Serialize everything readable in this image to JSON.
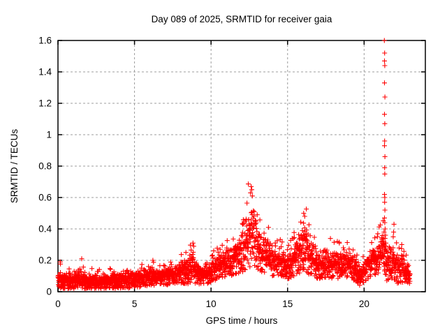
{
  "chart_data": {
    "type": "scatter",
    "title": "Day 089 of 2025, SRMTID for receiver gaia",
    "xlabel": "GPS time / hours",
    "ylabel": "SRMTID / TECUs",
    "xlim": [
      0,
      24
    ],
    "ylim": [
      0,
      1.6
    ],
    "xticks": [
      0,
      5,
      10,
      15,
      20
    ],
    "xtick_labels": [
      "0",
      "5",
      "10",
      "15",
      "20"
    ],
    "yticks": [
      0,
      0.2,
      0.4,
      0.6,
      0.8,
      1.0,
      1.2,
      1.4,
      1.6
    ],
    "ytick_labels": [
      "0",
      "0.2",
      "0.4",
      "0.6",
      "0.8",
      "1",
      "1.2",
      "1.4",
      "1.6"
    ],
    "grid": true,
    "grid_style": "dashed",
    "legend": null,
    "marker": {
      "shape": "plus",
      "color": "#ff0000",
      "size": 7
    },
    "colors": {
      "axis": "#000000",
      "grid": "#9c9c9c",
      "background": "#ffffff"
    },
    "sampling": {
      "start_hour": 0.0,
      "end_hour": 23.0,
      "points_per_hour": 120,
      "seed": 89
    },
    "envelope_note": "piecewise band [hour, min_TECU, max_TECU] of the dense scatter cloud read from the plot",
    "envelope": [
      [
        0.0,
        0.02,
        0.16
      ],
      [
        0.3,
        0.02,
        0.13
      ],
      [
        1.0,
        0.02,
        0.13
      ],
      [
        1.3,
        0.02,
        0.17
      ],
      [
        1.7,
        0.02,
        0.12
      ],
      [
        2.5,
        0.02,
        0.12
      ],
      [
        3.5,
        0.02,
        0.12
      ],
      [
        4.5,
        0.02,
        0.13
      ],
      [
        5.0,
        0.03,
        0.13
      ],
      [
        5.5,
        0.03,
        0.15
      ],
      [
        6.0,
        0.04,
        0.17
      ],
      [
        6.5,
        0.04,
        0.15
      ],
      [
        7.0,
        0.04,
        0.16
      ],
      [
        7.5,
        0.05,
        0.17
      ],
      [
        8.0,
        0.05,
        0.19
      ],
      [
        8.5,
        0.05,
        0.23
      ],
      [
        8.8,
        0.06,
        0.3
      ],
      [
        9.0,
        0.05,
        0.2
      ],
      [
        9.5,
        0.04,
        0.17
      ],
      [
        10.0,
        0.06,
        0.22
      ],
      [
        10.5,
        0.08,
        0.26
      ],
      [
        11.0,
        0.09,
        0.28
      ],
      [
        11.5,
        0.1,
        0.31
      ],
      [
        12.0,
        0.12,
        0.42
      ],
      [
        12.4,
        0.14,
        0.56
      ],
      [
        12.7,
        0.16,
        0.67
      ],
      [
        13.0,
        0.14,
        0.46
      ],
      [
        13.3,
        0.12,
        0.38
      ],
      [
        13.7,
        0.11,
        0.4
      ],
      [
        14.0,
        0.1,
        0.32
      ],
      [
        14.5,
        0.1,
        0.28
      ],
      [
        15.0,
        0.08,
        0.26
      ],
      [
        15.4,
        0.1,
        0.31
      ],
      [
        15.8,
        0.12,
        0.42
      ],
      [
        16.1,
        0.14,
        0.5
      ],
      [
        16.4,
        0.11,
        0.36
      ],
      [
        17.0,
        0.08,
        0.27
      ],
      [
        17.5,
        0.08,
        0.28
      ],
      [
        18.0,
        0.08,
        0.28
      ],
      [
        18.5,
        0.08,
        0.26
      ],
      [
        19.0,
        0.09,
        0.27
      ],
      [
        19.4,
        0.07,
        0.22
      ],
      [
        19.7,
        0.04,
        0.16
      ],
      [
        20.0,
        0.06,
        0.22
      ],
      [
        20.4,
        0.09,
        0.28
      ],
      [
        20.7,
        0.1,
        0.3
      ],
      [
        21.0,
        0.12,
        0.35
      ],
      [
        21.25,
        0.15,
        0.43
      ],
      [
        21.45,
        0.06,
        0.22
      ],
      [
        21.7,
        0.08,
        0.33
      ],
      [
        21.95,
        0.07,
        0.32
      ],
      [
        22.2,
        0.05,
        0.24
      ],
      [
        22.5,
        0.06,
        0.26
      ],
      [
        22.8,
        0.05,
        0.2
      ],
      [
        23.0,
        0.04,
        0.16
      ]
    ],
    "spike_points_note": "individual outlier points [hour, TECU] visible above the dense band",
    "spike_points": [
      [
        21.32,
        1.6
      ],
      [
        21.34,
        1.52
      ],
      [
        21.33,
        1.47
      ],
      [
        21.35,
        1.44
      ],
      [
        21.33,
        1.33
      ],
      [
        21.36,
        1.24
      ],
      [
        21.33,
        1.13
      ],
      [
        21.35,
        1.07
      ],
      [
        21.34,
        0.96
      ],
      [
        21.33,
        0.93
      ],
      [
        21.36,
        0.86
      ],
      [
        21.34,
        0.79
      ],
      [
        21.35,
        0.75
      ],
      [
        21.33,
        0.62
      ],
      [
        21.35,
        0.6
      ],
      [
        21.34,
        0.57
      ],
      [
        21.36,
        0.52
      ],
      [
        21.33,
        0.47
      ],
      [
        21.35,
        0.44
      ],
      [
        21.37,
        0.4
      ],
      [
        21.4,
        0.36
      ],
      [
        21.3,
        0.38
      ],
      [
        21.28,
        0.34
      ],
      [
        21.42,
        0.31
      ],
      [
        21.95,
        0.43
      ],
      [
        21.93,
        0.38
      ],
      [
        21.9,
        0.35
      ],
      [
        12.62,
        0.67
      ],
      [
        12.66,
        0.65
      ],
      [
        12.58,
        0.63
      ],
      [
        12.7,
        0.61
      ],
      [
        13.75,
        0.41
      ],
      [
        16.05,
        0.5
      ],
      [
        16.12,
        0.48
      ],
      [
        8.82,
        0.31
      ],
      [
        8.87,
        0.29
      ],
      [
        1.55,
        0.21
      ],
      [
        6.2,
        0.2
      ],
      [
        0.15,
        0.19
      ]
    ]
  }
}
